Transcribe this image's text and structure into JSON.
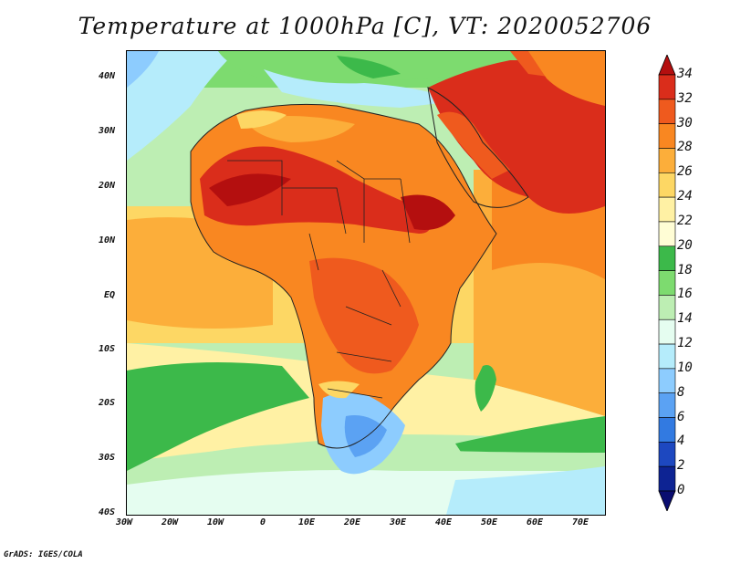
{
  "title": "Temperature at 1000hPa [C], VT: 2020052706",
  "credit": "GrADS: IGES/COLA",
  "lat_labels": [
    "40N",
    "30N",
    "20N",
    "10N",
    "EQ",
    "10S",
    "20S",
    "30S",
    "40S"
  ],
  "lon_labels": [
    "30W",
    "20W",
    "10W",
    "0",
    "10E",
    "20E",
    "30E",
    "40E",
    "50E",
    "60E",
    "70E"
  ],
  "colorbar": {
    "labels": [
      "34",
      "32",
      "30",
      "28",
      "26",
      "24",
      "22",
      "20",
      "18",
      "16",
      "14",
      "12",
      "10",
      "8",
      "6",
      "4",
      "2",
      "0"
    ],
    "colors": [
      "#b40f0f",
      "#da2d1b",
      "#ef5a1e",
      "#f98721",
      "#fcae3a",
      "#fdd764",
      "#fff1a4",
      "#fffdd5",
      "#3cb94a",
      "#7ddb6f",
      "#bdeeb3",
      "#e5fdf0",
      "#b5ecfb",
      "#8dccfe",
      "#5ba2f3",
      "#327ae1",
      "#1d48c0",
      "#0d2393",
      "#0a0d70"
    ]
  },
  "map": {
    "lon_range": [
      -30,
      75
    ],
    "lat_range": [
      -40,
      45
    ],
    "bg_color": "#8fc3ff"
  }
}
